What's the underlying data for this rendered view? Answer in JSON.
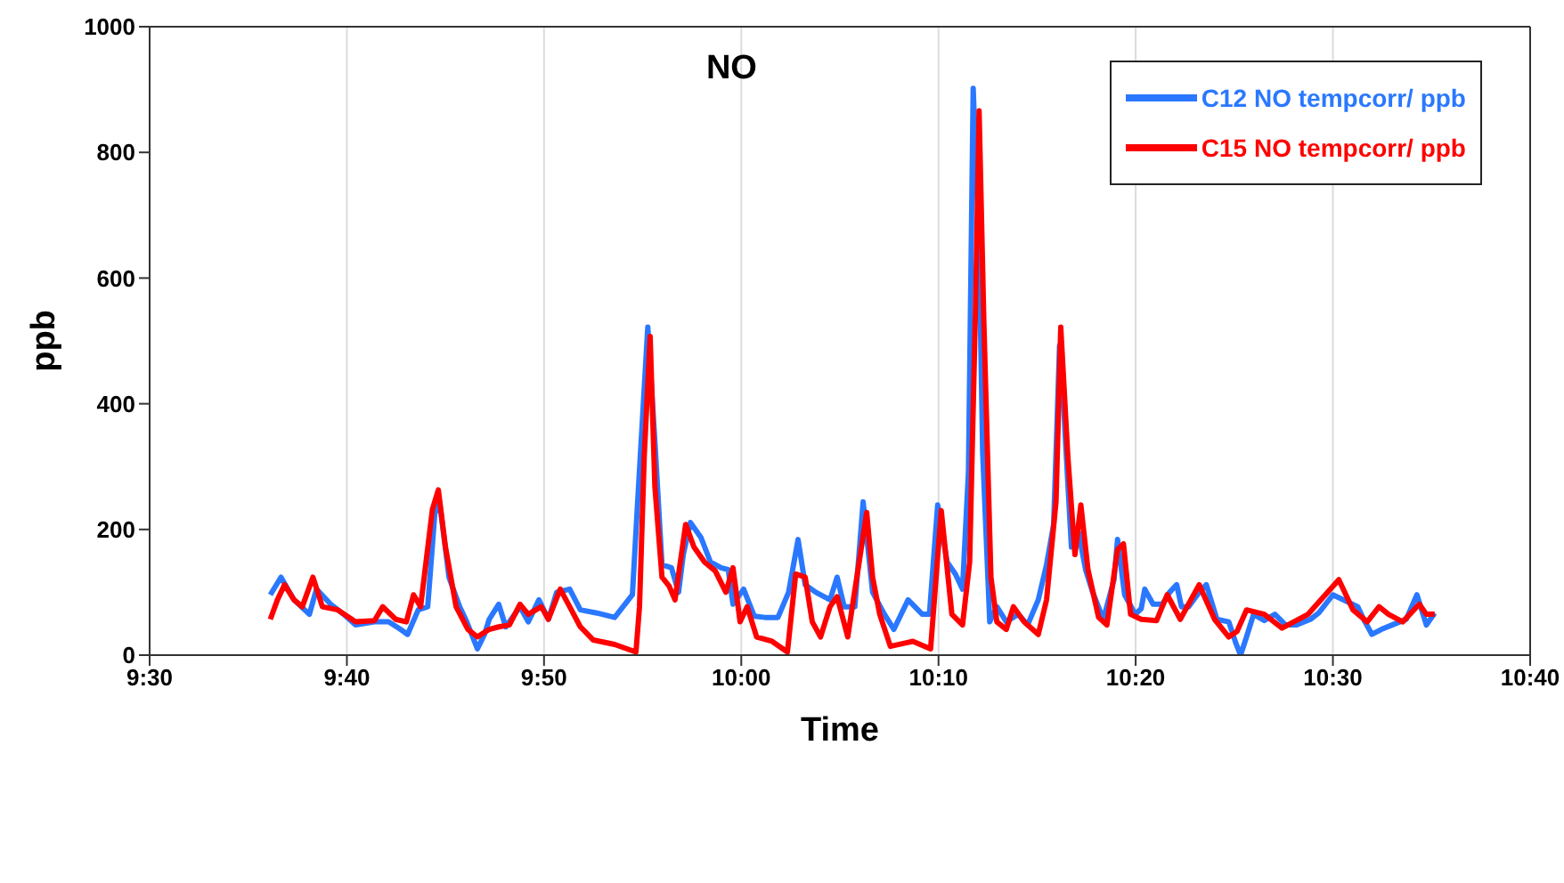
{
  "chart_data": {
    "type": "line",
    "title": "NO",
    "xlabel": "Time",
    "ylabel": "ppb",
    "xlim": [
      9.5,
      10.6667
    ],
    "xticks": [
      {
        "value": 9.5,
        "label": "9:30"
      },
      {
        "value": 9.6667,
        "label": "9:40"
      },
      {
        "value": 9.8333,
        "label": "9:50"
      },
      {
        "value": 10,
        "label": "10:00"
      },
      {
        "value": 10.1667,
        "label": "10:10"
      },
      {
        "value": 10.3333,
        "label": "10:20"
      },
      {
        "value": 10.5,
        "label": "10:30"
      },
      {
        "value": 10.6667,
        "label": "10:40"
      }
    ],
    "ylim": [
      0,
      1000
    ],
    "yticks": [
      0,
      200,
      400,
      600,
      800,
      1000
    ],
    "grid": "x",
    "legend": "top right",
    "marker": "none",
    "line_style": "solid",
    "series": [
      {
        "name": "C12 NO tempcorr/ ppb",
        "color": "#2a78ff",
        "x": [
          9.602,
          9.611,
          9.622,
          9.635,
          9.641,
          9.653,
          9.664,
          9.674,
          9.69,
          9.702,
          9.712,
          9.718,
          9.727,
          9.735,
          9.741,
          9.745,
          9.753,
          9.762,
          9.768,
          9.777,
          9.783,
          9.787,
          9.795,
          9.801,
          9.813,
          9.82,
          9.829,
          9.837,
          9.844,
          9.855,
          9.864,
          9.878,
          9.893,
          9.908,
          9.912,
          9.921,
          9.927,
          9.933,
          9.941,
          9.947,
          9.951,
          9.957,
          9.966,
          9.974,
          9.983,
          9.989,
          9.993,
          10.002,
          10.011,
          10.02,
          10.031,
          10.04,
          10.048,
          10.054,
          10.063,
          10.075,
          10.081,
          10.087,
          10.096,
          10.103,
          10.111,
          10.121,
          10.129,
          10.141,
          10.153,
          10.159,
          10.166,
          10.174,
          10.181,
          10.187,
          10.192,
          10.196,
          10.201,
          10.204,
          10.21,
          10.216,
          10.224,
          10.234,
          10.242,
          10.251,
          10.258,
          10.264,
          10.269,
          10.273,
          10.279,
          10.285,
          10.291,
          10.297,
          10.306,
          10.315,
          10.318,
          10.324,
          10.333,
          10.338,
          10.341,
          10.348,
          10.356,
          10.362,
          10.368,
          10.372,
          10.378,
          10.387,
          10.393,
          10.402,
          10.412,
          10.418,
          10.422,
          10.427,
          10.433,
          10.442,
          10.451,
          10.46,
          10.469,
          10.481,
          10.488,
          10.5,
          10.511,
          10.521,
          10.526,
          10.533,
          10.541,
          10.55,
          10.562,
          10.571,
          10.579,
          10.586
        ],
        "values": [
          96,
          124,
          88,
          65,
          105,
          81,
          65,
          48,
          53,
          53,
          41,
          33,
          72,
          77,
          225,
          244,
          124,
          77,
          53,
          10,
          33,
          57,
          81,
          45,
          77,
          53,
          88,
          57,
          100,
          105,
          72,
          67,
          60,
          96,
          230,
          522,
          340,
          144,
          139,
          100,
          160,
          211,
          187,
          148,
          139,
          136,
          81,
          105,
          62,
          60,
          60,
          100,
          184,
          112,
          100,
          88,
          124,
          77,
          77,
          244,
          100,
          65,
          41,
          88,
          65,
          65,
          239,
          148,
          129,
          105,
          292,
          902,
          651,
          323,
          53,
          77,
          53,
          65,
          48,
          88,
          144,
          208,
          493,
          376,
          172,
          196,
          136,
          100,
          57,
          120,
          184,
          96,
          65,
          74,
          105,
          81,
          81,
          100,
          112,
          77,
          77,
          100,
          112,
          57,
          53,
          19,
          0,
          29,
          65,
          55,
          65,
          48,
          48,
          57,
          67,
          96,
          86,
          77,
          57,
          33,
          41,
          48,
          57,
          96,
          48,
          67
        ]
      },
      {
        "name": "C15 NO tempcorr/ ppb",
        "color": "#ff0000",
        "x": [
          9.602,
          9.608,
          9.614,
          9.622,
          9.629,
          9.638,
          9.646,
          9.659,
          9.674,
          9.69,
          9.697,
          9.708,
          9.717,
          9.723,
          9.729,
          9.739,
          9.744,
          9.75,
          9.759,
          9.769,
          9.777,
          9.787,
          9.795,
          9.804,
          9.813,
          9.82,
          9.831,
          9.837,
          9.847,
          9.855,
          9.864,
          9.875,
          9.893,
          9.911,
          9.914,
          9.918,
          9.923,
          9.927,
          9.933,
          9.939,
          9.944,
          9.953,
          9.96,
          9.969,
          9.978,
          9.987,
          9.993,
          9.999,
          10.005,
          10.013,
          10.026,
          10.039,
          10.046,
          10.054,
          10.06,
          10.067,
          10.075,
          10.081,
          10.09,
          10.106,
          10.111,
          10.117,
          10.126,
          10.145,
          10.16,
          10.169,
          10.178,
          10.187,
          10.193,
          10.198,
          10.201,
          10.205,
          10.211,
          10.216,
          10.224,
          10.23,
          10.239,
          10.251,
          10.258,
          10.266,
          10.27,
          10.276,
          10.282,
          10.287,
          10.293,
          10.302,
          10.309,
          10.318,
          10.323,
          10.329,
          10.338,
          10.351,
          10.36,
          10.371,
          10.387,
          10.4,
          10.412,
          10.419,
          10.427,
          10.442,
          10.457,
          10.479,
          10.505,
          10.517,
          10.529,
          10.539,
          10.547,
          10.559,
          10.573,
          10.579,
          10.586
        ],
        "values": [
          57,
          88,
          112,
          88,
          77,
          124,
          77,
          72,
          53,
          55,
          77,
          57,
          53,
          96,
          77,
          232,
          263,
          172,
          77,
          41,
          29,
          41,
          45,
          48,
          81,
          65,
          77,
          57,
          105,
          77,
          45,
          24,
          17,
          5,
          77,
          316,
          507,
          268,
          124,
          110,
          88,
          208,
          172,
          148,
          134,
          100,
          139,
          53,
          77,
          29,
          22,
          5,
          129,
          124,
          53,
          29,
          77,
          93,
          29,
          227,
          124,
          65,
          14,
          22,
          10,
          230,
          65,
          48,
          148,
          555,
          866,
          531,
          124,
          53,
          41,
          77,
          53,
          33,
          88,
          244,
          522,
          316,
          160,
          239,
          136,
          60,
          48,
          168,
          177,
          65,
          57,
          55,
          96,
          57,
          112,
          57,
          29,
          38,
          72,
          65,
          43,
          65,
          120,
          72,
          53,
          77,
          65,
          53,
          81,
          65,
          65
        ]
      }
    ]
  }
}
